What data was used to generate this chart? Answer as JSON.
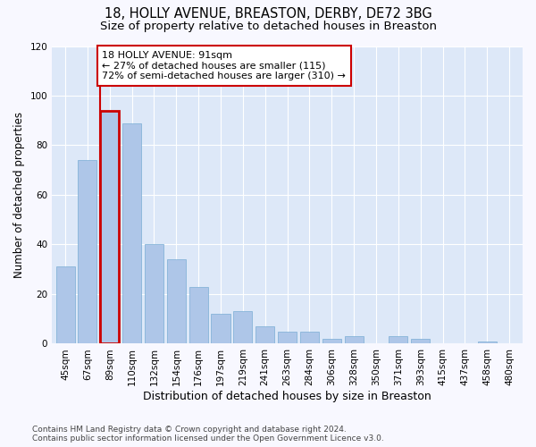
{
  "title1": "18, HOLLY AVENUE, BREASTON, DERBY, DE72 3BG",
  "title2": "Size of property relative to detached houses in Breaston",
  "xlabel": "Distribution of detached houses by size in Breaston",
  "ylabel": "Number of detached properties",
  "categories": [
    "45sqm",
    "67sqm",
    "89sqm",
    "110sqm",
    "132sqm",
    "154sqm",
    "176sqm",
    "197sqm",
    "219sqm",
    "241sqm",
    "263sqm",
    "284sqm",
    "306sqm",
    "328sqm",
    "350sqm",
    "371sqm",
    "393sqm",
    "415sqm",
    "437sqm",
    "458sqm",
    "480sqm"
  ],
  "values": [
    31,
    74,
    94,
    89,
    40,
    34,
    23,
    12,
    13,
    7,
    5,
    5,
    2,
    3,
    0,
    3,
    2,
    0,
    0,
    1,
    0
  ],
  "bar_color": "#aec6e8",
  "bar_edge_color": "#7aadd4",
  "highlight_bar_index": 2,
  "highlight_color": "#cc0000",
  "annotation_text": "18 HOLLY AVENUE: 91sqm\n← 27% of detached houses are smaller (115)\n72% of semi-detached houses are larger (310) →",
  "annotation_box_color": "#ffffff",
  "annotation_box_edge_color": "#cc0000",
  "ylim": [
    0,
    120
  ],
  "yticks": [
    0,
    20,
    40,
    60,
    80,
    100,
    120
  ],
  "plot_bg_color": "#dde8f8",
  "fig_bg_color": "#f8f8ff",
  "grid_color": "#ffffff",
  "footer_text": "Contains HM Land Registry data © Crown copyright and database right 2024.\nContains public sector information licensed under the Open Government Licence v3.0.",
  "title1_fontsize": 10.5,
  "title2_fontsize": 9.5,
  "xlabel_fontsize": 9,
  "ylabel_fontsize": 8.5,
  "tick_fontsize": 7.5,
  "annotation_fontsize": 8,
  "footer_fontsize": 6.5
}
